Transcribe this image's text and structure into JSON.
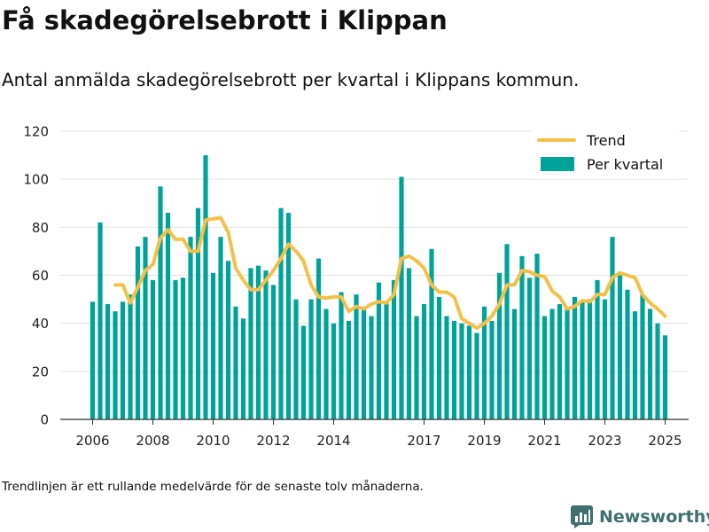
{
  "page": {
    "title": "Få skadegörelsebrott i Klippan",
    "subtitle": "Antal anmälda skadegörelsebrott per kvartal i Klippans kommun.",
    "footnote": "Trendlinjen är ett rullande medelvärde för de senaste tolv månaderna.",
    "brand": "Newsworthy",
    "brand_icon": "bar-chart-logo-icon"
  },
  "colors": {
    "bar": "#00a39a",
    "trend": "#f5c04a",
    "grid": "#e3e3e3",
    "text": "#111111",
    "brand": "#3f6f6f"
  },
  "chart_data": {
    "type": "bar",
    "ylim": [
      0,
      120
    ],
    "yticks": [
      0,
      20,
      40,
      60,
      80,
      100,
      120
    ],
    "grid": true,
    "legend_position": "top-right",
    "legend": [
      "Trend",
      "Per kvartal"
    ],
    "xticks": [
      "2006",
      "2008",
      "2010",
      "2012",
      "2014",
      "2017",
      "2019",
      "2021",
      "2023",
      "2025"
    ],
    "categories": [
      "2006 Q1",
      "2006 Q2",
      "2006 Q3",
      "2006 Q4",
      "2007 Q1",
      "2007 Q2",
      "2007 Q3",
      "2007 Q4",
      "2008 Q1",
      "2008 Q2",
      "2008 Q3",
      "2008 Q4",
      "2009 Q1",
      "2009 Q2",
      "2009 Q3",
      "2009 Q4",
      "2010 Q1",
      "2010 Q2",
      "2010 Q3",
      "2010 Q4",
      "2011 Q1",
      "2011 Q2",
      "2011 Q3",
      "2011 Q4",
      "2012 Q1",
      "2012 Q2",
      "2012 Q3",
      "2012 Q4",
      "2013 Q1",
      "2013 Q2",
      "2013 Q3",
      "2013 Q4",
      "2014 Q1",
      "2014 Q2",
      "2014 Q3",
      "2014 Q4",
      "2015 Q1",
      "2015 Q2",
      "2015 Q3",
      "2015 Q4",
      "2016 Q1",
      "2016 Q2",
      "2016 Q3",
      "2016 Q4",
      "2017 Q1",
      "2017 Q2",
      "2017 Q3",
      "2017 Q4",
      "2018 Q1",
      "2018 Q2",
      "2018 Q3",
      "2018 Q4",
      "2019 Q1",
      "2019 Q2",
      "2019 Q3",
      "2019 Q4",
      "2020 Q1",
      "2020 Q2",
      "2020 Q3",
      "2020 Q4",
      "2021 Q1",
      "2021 Q2",
      "2021 Q3",
      "2021 Q4",
      "2022 Q1",
      "2022 Q2",
      "2022 Q3",
      "2022 Q4",
      "2023 Q1",
      "2023 Q2",
      "2023 Q3",
      "2023 Q4",
      "2024 Q1",
      "2024 Q2",
      "2024 Q3",
      "2024 Q4",
      "2025 Q1"
    ],
    "series": [
      {
        "name": "Per kvartal",
        "type": "bar",
        "values": [
          49,
          82,
          48,
          45,
          49,
          52,
          72,
          76,
          58,
          97,
          86,
          58,
          59,
          76,
          88,
          110,
          61,
          76,
          66,
          47,
          42,
          63,
          64,
          62,
          56,
          88,
          86,
          50,
          39,
          50,
          67,
          46,
          40,
          53,
          41,
          52,
          47,
          43,
          57,
          49,
          58,
          101,
          63,
          43,
          48,
          71,
          51,
          43,
          41,
          40,
          39,
          36,
          47,
          41,
          61,
          73,
          46,
          68,
          59,
          69,
          43,
          46,
          48,
          46,
          51,
          49,
          50,
          58,
          50,
          76,
          60,
          54,
          45,
          52,
          46,
          40,
          35
        ]
      },
      {
        "name": "Trend",
        "type": "line",
        "values": [
          null,
          null,
          null,
          56,
          56,
          48.5,
          55,
          62,
          64.5,
          75.5,
          79,
          75,
          75,
          70,
          70,
          83,
          83.5,
          84,
          78,
          63,
          58,
          54,
          54,
          58,
          62,
          67,
          73,
          70,
          66,
          56,
          51,
          50.5,
          51,
          51,
          45,
          47,
          46,
          48,
          49,
          48.5,
          52,
          67,
          68,
          66,
          63,
          56,
          53,
          53,
          51,
          42,
          40,
          38,
          40,
          43,
          48,
          56,
          56,
          62,
          61.5,
          60,
          59.5,
          53.5,
          51,
          46,
          47,
          49.5,
          49,
          52,
          52,
          59,
          61,
          60,
          59,
          52,
          48.5,
          46,
          43
        ]
      }
    ]
  }
}
